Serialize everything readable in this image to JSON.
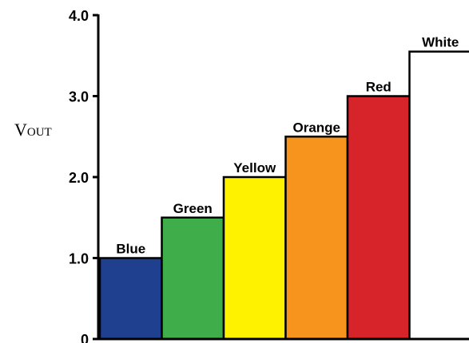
{
  "chart_data": {
    "type": "bar",
    "categories": [
      "Blue",
      "Green",
      "Yellow",
      "Orange",
      "Red",
      "White"
    ],
    "values": [
      1.0,
      1.5,
      2.0,
      2.5,
      3.0,
      3.55
    ],
    "colors": [
      "#1f3f8f",
      "#3fae4a",
      "#fff200",
      "#f7941d",
      "#d7232a",
      "#ffffff"
    ],
    "ylabel": {
      "main": "V",
      "sub": "OUT"
    },
    "ylim": [
      0,
      4.0
    ],
    "yticks": [
      "0",
      "1.0",
      "2.0",
      "3.0",
      "4.0"
    ],
    "ytick_values": [
      0,
      1.0,
      2.0,
      3.0,
      4.0
    ],
    "grid": false,
    "legend": "none"
  }
}
